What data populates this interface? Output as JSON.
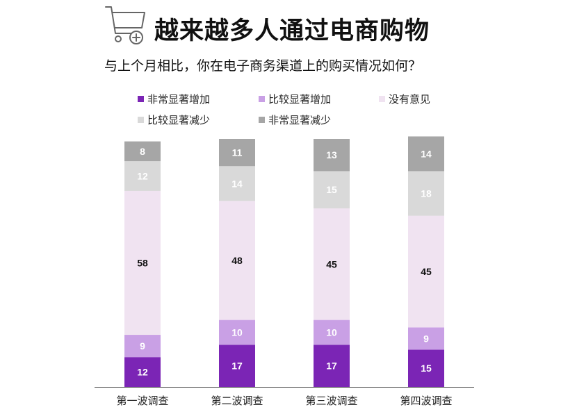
{
  "title": "越来越多人通过电商购物",
  "subtitle": "与上个月相比，你在电子商务渠道上的购买情况如何？",
  "icons": {
    "header_icon": "shopping-cart-add-icon"
  },
  "colors": {
    "very_increase": "#7B25B5",
    "somewhat_increase": "#C9A0E5",
    "no_change": "#F0E3F1",
    "somewhat_decrease": "#D9D9D9",
    "very_decrease": "#A6A6A6"
  },
  "legend": [
    {
      "label": "非常显著增加",
      "color": "#7B25B5"
    },
    {
      "label": "比较显著增加",
      "color": "#C9A0E5"
    },
    {
      "label": "没有意见",
      "color": "#F0E3F1"
    },
    {
      "label": "比较显著减少",
      "color": "#D9D9D9"
    },
    {
      "label": "非常显著减少",
      "color": "#A6A6A6"
    }
  ],
  "chart_data": {
    "type": "bar",
    "stacked": true,
    "categories": [
      "第一波调查",
      "第二波调查",
      "第三波调查",
      "第四波调查"
    ],
    "series": [
      {
        "name": "非常显著增加",
        "color": "#7B25B5",
        "label_color": "#ffffff",
        "values": [
          12,
          17,
          17,
          15
        ]
      },
      {
        "name": "比较显著增加",
        "color": "#C9A0E5",
        "label_color": "#ffffff",
        "values": [
          9,
          10,
          10,
          9
        ]
      },
      {
        "name": "没有意见",
        "color": "#F0E3F1",
        "label_color": "#111111",
        "values": [
          58,
          48,
          45,
          45
        ]
      },
      {
        "name": "比较显著减少",
        "color": "#D9D9D9",
        "label_color": "#ffffff",
        "values": [
          12,
          14,
          15,
          18
        ]
      },
      {
        "name": "非常显著减少",
        "color": "#A6A6A6",
        "label_color": "#ffffff",
        "values": [
          8,
          11,
          13,
          14
        ]
      }
    ],
    "grid": false,
    "legend_position": "top"
  }
}
